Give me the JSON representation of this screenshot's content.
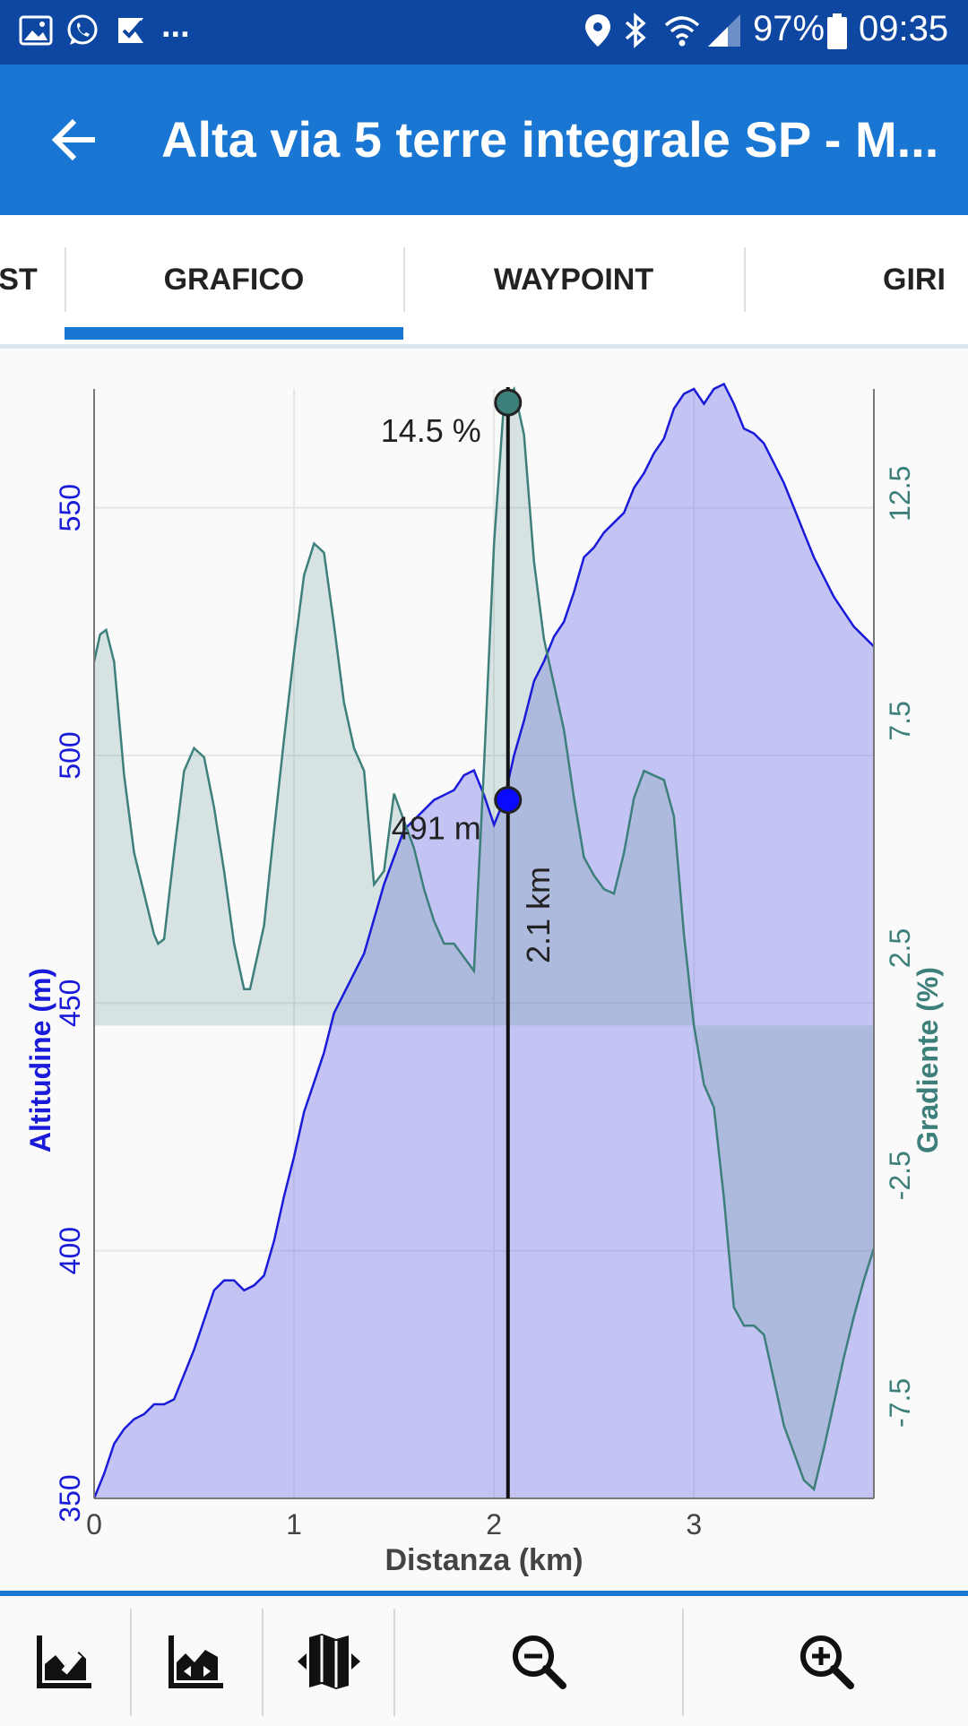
{
  "status_bar": {
    "battery": "97%",
    "time": "09:35",
    "overflow": "...",
    "icons": [
      "gallery-icon",
      "whatsapp-icon",
      "checklist-icon",
      "location-icon",
      "bluetooth-icon",
      "wifi-icon",
      "signal-icon",
      "battery-icon"
    ]
  },
  "app_bar": {
    "title": "Alta via 5 terre integrale SP - M..."
  },
  "tabs": [
    {
      "label": "ST"
    },
    {
      "label": "GRAFICO",
      "selected": true
    },
    {
      "label": "WAYPOINT"
    },
    {
      "label": "GIRI"
    }
  ],
  "colors": {
    "app_bar": "#1976d2",
    "status_bar": "#0d47a1",
    "altitude": "#1a1ad9",
    "gradient": "#3d7f7a"
  },
  "chart_data": {
    "type": "area",
    "xlabel": "Distanza (km)",
    "ylabel": "Altitudine (m)",
    "y2label": "Gradiente (%)",
    "xlim": [
      0,
      3.9
    ],
    "ylim": [
      350,
      574
    ],
    "y2lim": [
      -9.6,
      14.8
    ],
    "x_ticks": [
      "0",
      "1",
      "2",
      "3"
    ],
    "y_ticks": [
      "350",
      "400",
      "450",
      "500",
      "550"
    ],
    "y2_ticks": [
      "-7.5",
      "-2.5",
      "2.5",
      "7.5",
      "12.5"
    ],
    "grid": true,
    "series": [
      {
        "name": "Altitudine (m)",
        "axis": "left",
        "points": [
          [
            0,
            350
          ],
          [
            0.05,
            355
          ],
          [
            0.1,
            361
          ],
          [
            0.15,
            364
          ],
          [
            0.2,
            366
          ],
          [
            0.25,
            367
          ],
          [
            0.3,
            369
          ],
          [
            0.35,
            369
          ],
          [
            0.4,
            370
          ],
          [
            0.45,
            375
          ],
          [
            0.5,
            380
          ],
          [
            0.55,
            386
          ],
          [
            0.6,
            392
          ],
          [
            0.65,
            394
          ],
          [
            0.7,
            394
          ],
          [
            0.75,
            392
          ],
          [
            0.8,
            393
          ],
          [
            0.85,
            395
          ],
          [
            0.9,
            402
          ],
          [
            0.95,
            411
          ],
          [
            1.0,
            419
          ],
          [
            1.05,
            428
          ],
          [
            1.1,
            434
          ],
          [
            1.15,
            440
          ],
          [
            1.2,
            448
          ],
          [
            1.25,
            452
          ],
          [
            1.3,
            456
          ],
          [
            1.35,
            460
          ],
          [
            1.45,
            474
          ],
          [
            1.55,
            485
          ],
          [
            1.65,
            489
          ],
          [
            1.7,
            491
          ],
          [
            1.8,
            493
          ],
          [
            1.85,
            496
          ],
          [
            1.9,
            497
          ],
          [
            1.95,
            492
          ],
          [
            2.0,
            486
          ],
          [
            2.05,
            491
          ],
          [
            2.1,
            500
          ],
          [
            2.15,
            507
          ],
          [
            2.2,
            515
          ],
          [
            2.25,
            519
          ],
          [
            2.3,
            524
          ],
          [
            2.35,
            527
          ],
          [
            2.4,
            533
          ],
          [
            2.45,
            540
          ],
          [
            2.5,
            542
          ],
          [
            2.55,
            545
          ],
          [
            2.6,
            547
          ],
          [
            2.65,
            549
          ],
          [
            2.7,
            554
          ],
          [
            2.75,
            557
          ],
          [
            2.8,
            561
          ],
          [
            2.85,
            564
          ],
          [
            2.9,
            570
          ],
          [
            2.95,
            573
          ],
          [
            3.0,
            574
          ],
          [
            3.05,
            571
          ],
          [
            3.1,
            574
          ],
          [
            3.15,
            575
          ],
          [
            3.2,
            571
          ],
          [
            3.25,
            566
          ],
          [
            3.3,
            565
          ],
          [
            3.35,
            563
          ],
          [
            3.4,
            559
          ],
          [
            3.45,
            555
          ],
          [
            3.5,
            550
          ],
          [
            3.55,
            545
          ],
          [
            3.6,
            540
          ],
          [
            3.65,
            536
          ],
          [
            3.7,
            532
          ],
          [
            3.75,
            529
          ],
          [
            3.8,
            526
          ],
          [
            3.85,
            524
          ],
          [
            3.9,
            522
          ]
        ]
      },
      {
        "name": "Gradiente (%)",
        "axis": "right",
        "baseline": 0.8,
        "points": [
          [
            0,
            8.8
          ],
          [
            0.03,
            9.4
          ],
          [
            0.06,
            9.5
          ],
          [
            0.1,
            8.8
          ],
          [
            0.15,
            6.3
          ],
          [
            0.2,
            4.6
          ],
          [
            0.25,
            3.7
          ],
          [
            0.3,
            2.8
          ],
          [
            0.32,
            2.6
          ],
          [
            0.35,
            2.7
          ],
          [
            0.4,
            4.6
          ],
          [
            0.45,
            6.4
          ],
          [
            0.5,
            6.9
          ],
          [
            0.55,
            6.7
          ],
          [
            0.6,
            5.6
          ],
          [
            0.65,
            4.2
          ],
          [
            0.7,
            2.6
          ],
          [
            0.75,
            1.6
          ],
          [
            0.78,
            1.6
          ],
          [
            0.85,
            3.0
          ],
          [
            0.9,
            5.1
          ],
          [
            0.95,
            7.1
          ],
          [
            1.0,
            9.0
          ],
          [
            1.05,
            10.7
          ],
          [
            1.1,
            11.4
          ],
          [
            1.15,
            11.2
          ],
          [
            1.2,
            9.6
          ],
          [
            1.25,
            7.9
          ],
          [
            1.3,
            6.9
          ],
          [
            1.35,
            6.4
          ],
          [
            1.4,
            3.9
          ],
          [
            1.45,
            4.2
          ],
          [
            1.5,
            5.9
          ],
          [
            1.55,
            5.3
          ],
          [
            1.6,
            4.7
          ],
          [
            1.65,
            3.8
          ],
          [
            1.7,
            3.1
          ],
          [
            1.75,
            2.6
          ],
          [
            1.8,
            2.6
          ],
          [
            1.85,
            2.3
          ],
          [
            1.9,
            2.0
          ],
          [
            1.95,
            6.5
          ],
          [
            2.0,
            11.4
          ],
          [
            2.05,
            14.5
          ],
          [
            2.1,
            14.8
          ],
          [
            2.15,
            13.8
          ],
          [
            2.2,
            11.0
          ],
          [
            2.25,
            9.3
          ],
          [
            2.3,
            8.3
          ],
          [
            2.35,
            7.3
          ],
          [
            2.4,
            5.8
          ],
          [
            2.45,
            4.5
          ],
          [
            2.5,
            4.1
          ],
          [
            2.55,
            3.8
          ],
          [
            2.6,
            3.7
          ],
          [
            2.65,
            4.6
          ],
          [
            2.7,
            5.8
          ],
          [
            2.75,
            6.4
          ],
          [
            2.8,
            6.3
          ],
          [
            2.85,
            6.2
          ],
          [
            2.9,
            5.4
          ],
          [
            2.95,
            2.8
          ],
          [
            3.0,
            0.8
          ],
          [
            3.05,
            -0.5
          ],
          [
            3.1,
            -1.0
          ],
          [
            3.15,
            -3.0
          ],
          [
            3.2,
            -5.4
          ],
          [
            3.25,
            -5.8
          ],
          [
            3.3,
            -5.8
          ],
          [
            3.35,
            -6.0
          ],
          [
            3.4,
            -7.0
          ],
          [
            3.45,
            -8.0
          ],
          [
            3.5,
            -8.6
          ],
          [
            3.55,
            -9.2
          ],
          [
            3.6,
            -9.4
          ],
          [
            3.65,
            -8.5
          ],
          [
            3.7,
            -7.5
          ],
          [
            3.75,
            -6.5
          ],
          [
            3.8,
            -5.6
          ],
          [
            3.85,
            -4.8
          ],
          [
            3.9,
            -4.1
          ]
        ]
      }
    ],
    "cursor": {
      "x": 2.07,
      "altitude_label": "491 m",
      "altitude_value": 491,
      "gradient_label": "14.5 %",
      "gradient_value": 14.5,
      "distance_label": "2.1 km"
    }
  },
  "bottom_bar": {
    "buttons": [
      {
        "icon": "chart-edit-icon"
      },
      {
        "icon": "chart-area-expand-icon"
      },
      {
        "icon": "map-split-icon"
      },
      {
        "icon": "zoom-out-icon"
      },
      {
        "icon": "zoom-in-icon"
      }
    ]
  }
}
